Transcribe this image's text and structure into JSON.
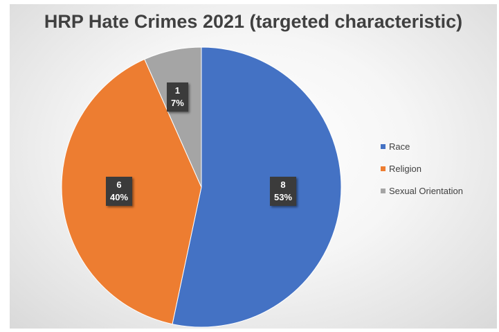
{
  "chart_data": {
    "type": "pie",
    "title": "HRP Hate Crimes 2021 (targeted characteristic)",
    "categories": [
      "Race",
      "Religion",
      "Sexual Orientation"
    ],
    "values": [
      8,
      6,
      1
    ],
    "percent_labels": [
      "53%",
      "40%",
      "7%"
    ],
    "colors": [
      "#4472c4",
      "#ed7d31",
      "#a5a5a5"
    ],
    "legend_position": "right",
    "start_angle": "12 o'clock, clockwise"
  }
}
